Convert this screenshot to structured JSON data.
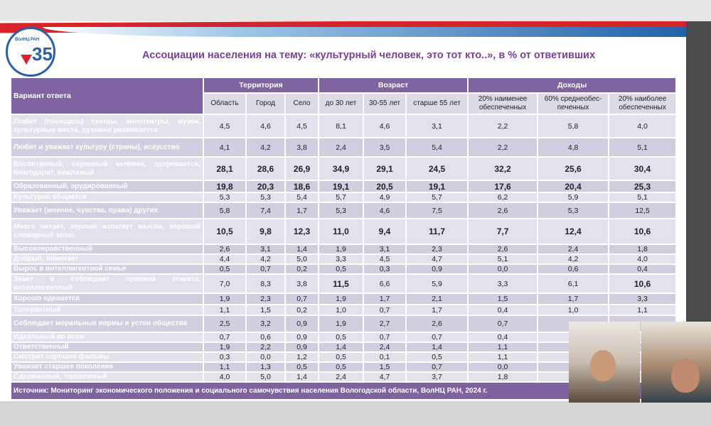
{
  "logo": {
    "text": "ВолНЦ РАН",
    "number": "35",
    "suffix": "лет"
  },
  "title": "Ассоциации населения на тему: «культурный человек, это тот кто..», в % от ответивших",
  "table": {
    "row_header": "Вариант ответа",
    "groups": [
      "Территория",
      "Возраст",
      "Доходы"
    ],
    "columns": [
      "Область",
      "Город",
      "Село",
      "до 30 лет",
      "30-55 лет",
      "старше 55 лет",
      "20% наименее обеспеченных",
      "60% среднеобес-печенных",
      "20% наиболее обеспеченных"
    ],
    "rows": [
      {
        "label": "Любит (посещать) театры, кинотеатры, музеи, культурные места, духовно развивается",
        "values": [
          "4,5",
          "4,6",
          "4,5",
          "8,1",
          "4,6",
          "3,1",
          "2,2",
          "5,8",
          "4,0"
        ],
        "bold": []
      },
      {
        "label": "Любит и уважает культуру (страны), искусство",
        "values": [
          "4,1",
          "4,2",
          "3,8",
          "2,4",
          "3,5",
          "5,4",
          "2,2",
          "4,8",
          "5,1"
        ],
        "bold": []
      },
      {
        "label": "Воспитанный, скромный человек, здоровается, благодарит, вежливый",
        "values": [
          "28,1",
          "28,6",
          "26,9",
          "34,9",
          "29,1",
          "24,5",
          "32,2",
          "25,6",
          "30,4"
        ],
        "bold": [
          0,
          1,
          2,
          3,
          4,
          5,
          6,
          7,
          8
        ]
      },
      {
        "label": "Образованный, эрудированный",
        "values": [
          "19,8",
          "20,3",
          "18,6",
          "19,1",
          "20,5",
          "19,1",
          "17,6",
          "20,4",
          "25,3"
        ],
        "bold": [
          0,
          1,
          2,
          3,
          4,
          5,
          6,
          7,
          8
        ]
      },
      {
        "label": "Культурно общается",
        "values": [
          "5,3",
          "5,3",
          "5,4",
          "5,7",
          "4,9",
          "5,7",
          "6,2",
          "5,9",
          "5,1"
        ],
        "bold": []
      },
      {
        "label": "Уважает (мнение, чувства, права) других",
        "values": [
          "5,8",
          "7,4",
          "1,7",
          "5,3",
          "4,6",
          "7,5",
          "2,6",
          "5,3",
          "12,5"
        ],
        "bold": []
      },
      {
        "label": "Много читает, хорошо излагает мысли, хороший словарный запас",
        "values": [
          "10,5",
          "9,8",
          "12,3",
          "11,0",
          "9,4",
          "11,7",
          "7,7",
          "12,4",
          "10,6"
        ],
        "bold": [
          0,
          1,
          2,
          3,
          4,
          5,
          6,
          7,
          8
        ]
      },
      {
        "label": "Высоконравственный",
        "values": [
          "2,6",
          "3,1",
          "1,4",
          "1,9",
          "3,1",
          "2,3",
          "2,6",
          "2,4",
          "1,8"
        ],
        "bold": []
      },
      {
        "label": "Добрый, помогает",
        "values": [
          "4,4",
          "4,2",
          "5,0",
          "3,3",
          "4,5",
          "4,7",
          "5,1",
          "4,2",
          "4,0"
        ],
        "bold": []
      },
      {
        "label": "Вырос в интеллигентной семье",
        "values": [
          "0,5",
          "0,7",
          "0,2",
          "0,5",
          "0,3",
          "0,9",
          "0,0",
          "0,6",
          "0,4"
        ],
        "bold": []
      },
      {
        "label": "Знает и соблюдает правила этикета, интеллигентный",
        "values": [
          "7,0",
          "8,3",
          "3,8",
          "11,5",
          "6,6",
          "5,9",
          "3,3",
          "6,1",
          "10,6"
        ],
        "bold": [
          3,
          8
        ]
      },
      {
        "label": "Хорошо одевается",
        "values": [
          "1,9",
          "2,3",
          "0,7",
          "1,9",
          "1,7",
          "2,1",
          "1,5",
          "1,7",
          "3,3"
        ],
        "bold": []
      },
      {
        "label": "Толерантный",
        "values": [
          "1,1",
          "1,5",
          "0,2",
          "1,0",
          "0,7",
          "1,7",
          "0,4",
          "1,0",
          "1,1"
        ],
        "bold": []
      },
      {
        "label": "Соблюдает моральные нормы и устои общества",
        "values": [
          "2,5",
          "3,2",
          "0,9",
          "1,9",
          "2,7",
          "2,6",
          "0,7",
          "",
          ""
        ],
        "bold": []
      },
      {
        "label": "Идеальный во всем",
        "values": [
          "0,7",
          "0,6",
          "0,9",
          "0,5",
          "0,7",
          "0,7",
          "0,4",
          "",
          ""
        ],
        "bold": []
      },
      {
        "label": "Ответственный",
        "values": [
          "1,9",
          "2,2",
          "0,9",
          "1,4",
          "2,4",
          "1,4",
          "1,1",
          "",
          ""
        ],
        "bold": []
      },
      {
        "label": "Смотрит хорошие фильмы",
        "values": [
          "0,3",
          "0,0",
          "1,2",
          "0,5",
          "0,1",
          "0,5",
          "1,1",
          "",
          ""
        ],
        "bold": []
      },
      {
        "label": "Уважает старшее поколение",
        "values": [
          "1,1",
          "1,3",
          "0,5",
          "0,5",
          "1,5",
          "0,7",
          "0,0",
          "",
          ""
        ],
        "bold": []
      },
      {
        "label": "Сдержанный, терпеливый",
        "values": [
          "4,0",
          "5,0",
          "1,4",
          "2,4",
          "4,7",
          "3,7",
          "1,8",
          "",
          ""
        ],
        "bold": []
      }
    ],
    "source": "Источник: Мониторинг экономического положения и социального самочувствия населения Вологодской области, ВолНЦ РАН, 2024 г."
  },
  "colors": {
    "header": "#8064a2",
    "title": "#7b3f98",
    "row_light": "#e4e0ec",
    "row_dark": "#d3cde0"
  }
}
